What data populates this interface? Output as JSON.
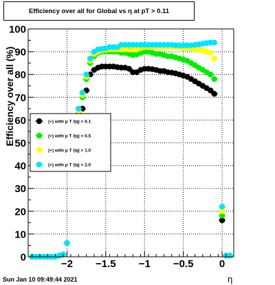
{
  "title": "Efficiency over all for Global vs   η at pT > 0.11",
  "timestamp": "Sun Jan 10 09:49:44 2021",
  "chart_data": {
    "type": "scatter",
    "title": "Efficiency over all for Global vs   η at pT > 0.11",
    "xlabel": "η",
    "ylabel": "Efficiency over all (%)",
    "xlim": [
      -2.5,
      0.15
    ],
    "ylim": [
      0,
      100
    ],
    "x_ticks": [
      -2,
      -1.5,
      -1,
      -0.5,
      0
    ],
    "x_tick_labels": [
      "−2",
      "−1.5",
      "−1",
      "−0.5",
      "0"
    ],
    "y_ticks": [
      0,
      10,
      20,
      30,
      40,
      50,
      60,
      70,
      80,
      90,
      100
    ],
    "grid": true,
    "legend_position": "left-middle",
    "x": [
      -2.45,
      -2.4,
      -2.35,
      -2.3,
      -2.25,
      -2.2,
      -2.15,
      -2.1,
      -2.05,
      -2.0,
      -1.95,
      -1.9,
      -1.85,
      -1.8,
      -1.75,
      -1.7,
      -1.65,
      -1.6,
      -1.55,
      -1.5,
      -1.45,
      -1.4,
      -1.35,
      -1.3,
      -1.25,
      -1.2,
      -1.15,
      -1.1,
      -1.05,
      -1.0,
      -0.95,
      -0.9,
      -0.85,
      -0.8,
      -0.75,
      -0.7,
      -0.65,
      -0.6,
      -0.55,
      -0.5,
      -0.45,
      -0.4,
      -0.35,
      -0.3,
      -0.25,
      -0.2,
      -0.15,
      -0.1,
      -0.05,
      0.0,
      0.05,
      0.1
    ],
    "series": [
      {
        "name": "(+) with p T /|q| > 0.1",
        "color": "#000000",
        "values": [
          0,
          0,
          0,
          0,
          0,
          0,
          0,
          0.5,
          1,
          6,
          null,
          null,
          57,
          65,
          73,
          80,
          82,
          83,
          83.5,
          83.5,
          83.5,
          83.5,
          83.2,
          83,
          83,
          82.5,
          81,
          81,
          82,
          82.5,
          82.5,
          82.3,
          82,
          81.5,
          81.5,
          81,
          80.8,
          80.5,
          80,
          79.5,
          79,
          78,
          77,
          76,
          75,
          74,
          73,
          71.5,
          null,
          16,
          0.5,
          0.5
        ]
      },
      {
        "name": "(+) with p T /|q| > 0.5",
        "color": "#00ee00",
        "values": [
          0,
          0,
          0,
          0,
          0,
          0,
          0,
          0.5,
          1,
          6,
          null,
          null,
          63,
          70,
          78,
          85,
          88,
          89.5,
          90,
          90,
          90,
          90,
          90,
          89.5,
          89.5,
          89,
          88.5,
          88.8,
          89.5,
          90,
          90,
          89.5,
          89,
          89,
          88.5,
          88,
          88,
          87.5,
          87,
          86.5,
          86,
          85,
          84,
          83,
          82,
          81,
          80,
          78,
          null,
          18,
          0.5,
          0.5
        ]
      },
      {
        "name": "(+) with p T /|q| > 1.0",
        "color": "#ffff00",
        "values": [
          0,
          0,
          0,
          0,
          0,
          0,
          0,
          0.5,
          1,
          6,
          null,
          null,
          64,
          71,
          79,
          86,
          89,
          90,
          90.5,
          90.8,
          91,
          91,
          91,
          91,
          91,
          91,
          91,
          91,
          91.5,
          92,
          92,
          92,
          92,
          92,
          92,
          92,
          92,
          92,
          91.8,
          91.5,
          91.5,
          91.5,
          91,
          91,
          90.5,
          90,
          89.5,
          87,
          null,
          20,
          0.5,
          0.5
        ]
      },
      {
        "name": "(+) with p T /|q| > 2.0",
        "color": "#00e5ff",
        "values": [
          0,
          0,
          0,
          0,
          0,
          0,
          0,
          0.5,
          1,
          6,
          null,
          null,
          65,
          72,
          80,
          87,
          90,
          91,
          91.2,
          91.5,
          92,
          92,
          92,
          93,
          93,
          93,
          93,
          93,
          93,
          93,
          93,
          93,
          93,
          93,
          93,
          93,
          93,
          92.8,
          92.8,
          92.8,
          92.8,
          92.8,
          93,
          93.2,
          93.5,
          93.8,
          94,
          94,
          null,
          22,
          0.5,
          0.5
        ]
      }
    ]
  }
}
